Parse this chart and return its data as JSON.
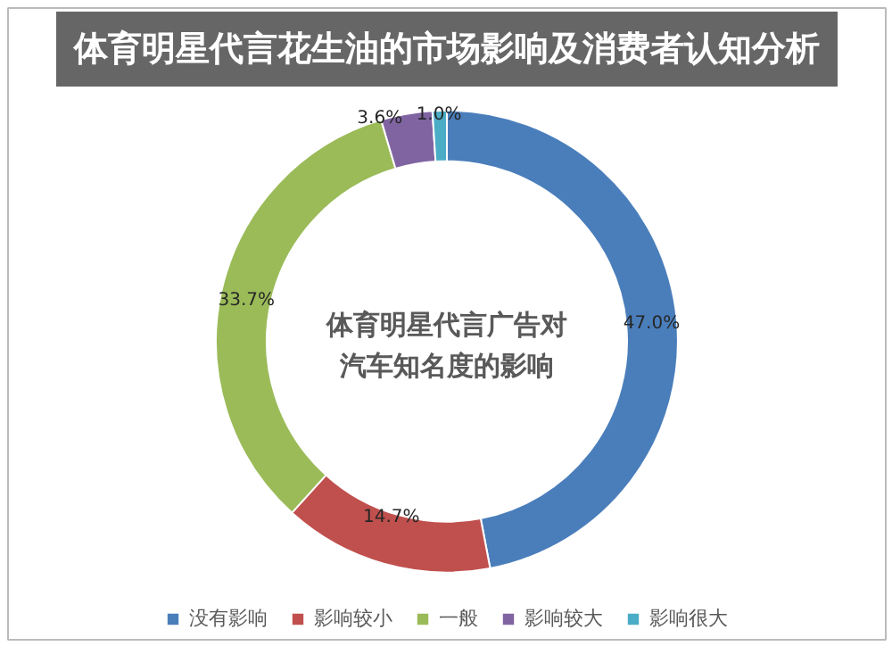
{
  "chart_data": {
    "type": "donut",
    "title": "体育明星代言花生油的市场影响及消费者认知分析",
    "subtitle": "体育明星代言广告对汽车知名度的影响",
    "categories": [
      "没有影响",
      "影响较小",
      "一般",
      "影响较大",
      "影响很大"
    ],
    "values": [
      47.0,
      14.7,
      33.7,
      3.6,
      1.0
    ],
    "value_labels": [
      "47.0%",
      "14.7%",
      "33.7%",
      "3.6%",
      "1.0%"
    ],
    "colors": [
      "#4a7ebb",
      "#c0504d",
      "#9bbb59",
      "#8064a2",
      "#4bacc6"
    ],
    "legend": "bottom"
  }
}
